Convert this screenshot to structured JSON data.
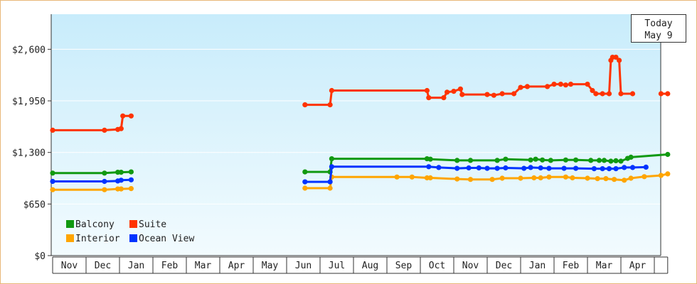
{
  "chart_data": {
    "type": "line",
    "title": "",
    "xlabel": "",
    "ylabel": "",
    "ylim": [
      0,
      3042
    ],
    "yticks": [
      0,
      650,
      1300,
      1950,
      2600
    ],
    "ytick_labels": [
      "$0",
      "$650",
      "$1,300",
      "$1,950",
      "$2,600"
    ],
    "months": [
      "Nov",
      "Dec",
      "Jan",
      "Feb",
      "Mar",
      "Apr",
      "May",
      "Jun",
      "Jul",
      "Aug",
      "Sep",
      "Oct",
      "Nov",
      "Dec",
      "Jan",
      "Feb",
      "Mar",
      "Apr"
    ],
    "x_unit": "month index (0 = start of Nov)",
    "x_range": [
      0,
      18.4
    ],
    "today_marker": {
      "line1": "Today",
      "line2": "May 9",
      "x": 18.4
    },
    "legend": {
      "placement": "bottom-left"
    },
    "series": [
      {
        "name": "Balcony",
        "color": "#119911",
        "segments": [
          [
            [
              0,
              1040
            ],
            [
              1.55,
              1040
            ],
            [
              1.95,
              1050
            ],
            [
              2.05,
              1050
            ],
            [
              2.35,
              1055
            ]
          ],
          [
            [
              7.55,
              1055
            ],
            [
              8.3,
              1055
            ],
            [
              8.35,
              1220
            ],
            [
              11.2,
              1220
            ],
            [
              11.3,
              1215
            ],
            [
              12.1,
              1200
            ],
            [
              12.5,
              1200
            ],
            [
              13.3,
              1200
            ],
            [
              13.55,
              1215
            ],
            [
              14.3,
              1205
            ],
            [
              14.45,
              1215
            ],
            [
              14.65,
              1205
            ],
            [
              14.9,
              1200
            ],
            [
              15.35,
              1205
            ],
            [
              15.65,
              1205
            ],
            [
              16.1,
              1200
            ],
            [
              16.35,
              1200
            ],
            [
              16.5,
              1200
            ],
            [
              16.7,
              1190
            ],
            [
              16.85,
              1195
            ],
            [
              17.0,
              1190
            ],
            [
              17.2,
              1225
            ],
            [
              17.3,
              1240
            ],
            [
              18.4,
              1275
            ]
          ]
        ]
      },
      {
        "name": "Suite",
        "color": "#ff3300",
        "segments": [
          [
            [
              0,
              1580
            ],
            [
              1.55,
              1580
            ],
            [
              1.95,
              1590
            ],
            [
              2.05,
              1600
            ],
            [
              2.1,
              1760
            ],
            [
              2.35,
              1760
            ]
          ],
          [
            [
              7.55,
              1900
            ],
            [
              8.3,
              1900
            ],
            [
              8.35,
              2080
            ],
            [
              11.2,
              2080
            ],
            [
              11.25,
              1990
            ],
            [
              11.7,
              1990
            ],
            [
              11.8,
              2060
            ],
            [
              12.0,
              2070
            ],
            [
              12.2,
              2100
            ],
            [
              12.25,
              2030
            ],
            [
              13.0,
              2030
            ],
            [
              13.2,
              2020
            ],
            [
              13.45,
              2040
            ],
            [
              13.8,
              2040
            ],
            [
              14.0,
              2120
            ],
            [
              14.2,
              2130
            ],
            [
              14.8,
              2130
            ],
            [
              15.0,
              2160
            ],
            [
              15.2,
              2160
            ],
            [
              15.35,
              2150
            ],
            [
              15.5,
              2160
            ],
            [
              16.0,
              2160
            ],
            [
              16.15,
              2080
            ],
            [
              16.25,
              2040
            ],
            [
              16.45,
              2040
            ],
            [
              16.65,
              2040
            ],
            [
              16.7,
              2460
            ],
            [
              16.75,
              2500
            ],
            [
              16.85,
              2500
            ],
            [
              16.95,
              2460
            ],
            [
              17.0,
              2040
            ],
            [
              17.35,
              2040
            ]
          ],
          [
            [
              18.2,
              2040
            ],
            [
              18.4,
              2040
            ]
          ]
        ]
      },
      {
        "name": "Interior",
        "color": "#ffa500",
        "segments": [
          [
            [
              0,
              830
            ],
            [
              1.55,
              830
            ],
            [
              1.95,
              840
            ],
            [
              2.05,
              840
            ],
            [
              2.35,
              845
            ]
          ],
          [
            [
              7.55,
              850
            ],
            [
              8.3,
              850
            ],
            [
              8.35,
              990
            ],
            [
              10.3,
              990
            ],
            [
              10.75,
              990
            ],
            [
              11.2,
              980
            ],
            [
              11.3,
              980
            ],
            [
              12.1,
              965
            ],
            [
              12.5,
              960
            ],
            [
              13.15,
              960
            ],
            [
              13.45,
              975
            ],
            [
              14.0,
              975
            ],
            [
              14.4,
              980
            ],
            [
              14.6,
              980
            ],
            [
              14.85,
              990
            ],
            [
              15.35,
              990
            ],
            [
              15.55,
              980
            ],
            [
              16.0,
              975
            ],
            [
              16.3,
              970
            ],
            [
              16.55,
              970
            ],
            [
              16.8,
              960
            ],
            [
              17.1,
              950
            ],
            [
              17.3,
              975
            ],
            [
              17.7,
              995
            ],
            [
              18.2,
              1010
            ],
            [
              18.4,
              1030
            ]
          ]
        ]
      },
      {
        "name": "Ocean View",
        "color": "#0033ff",
        "segments": [
          [
            [
              0,
              935
            ],
            [
              1.55,
              935
            ],
            [
              1.95,
              940
            ],
            [
              2.05,
              950
            ],
            [
              2.35,
              955
            ]
          ],
          [
            [
              7.55,
              930
            ],
            [
              8.3,
              930
            ],
            [
              8.35,
              1120
            ],
            [
              11.25,
              1120
            ],
            [
              11.55,
              1110
            ],
            [
              12.1,
              1100
            ],
            [
              12.45,
              1105
            ],
            [
              12.75,
              1105
            ],
            [
              13.0,
              1100
            ],
            [
              13.3,
              1100
            ],
            [
              13.55,
              1105
            ],
            [
              14.1,
              1100
            ],
            [
              14.3,
              1110
            ],
            [
              14.6,
              1105
            ],
            [
              14.85,
              1100
            ],
            [
              15.3,
              1100
            ],
            [
              15.65,
              1100
            ],
            [
              16.2,
              1095
            ],
            [
              16.45,
              1095
            ],
            [
              16.65,
              1095
            ],
            [
              16.85,
              1095
            ],
            [
              17.1,
              1110
            ],
            [
              17.35,
              1110
            ],
            [
              17.75,
              1115
            ]
          ]
        ]
      }
    ]
  }
}
